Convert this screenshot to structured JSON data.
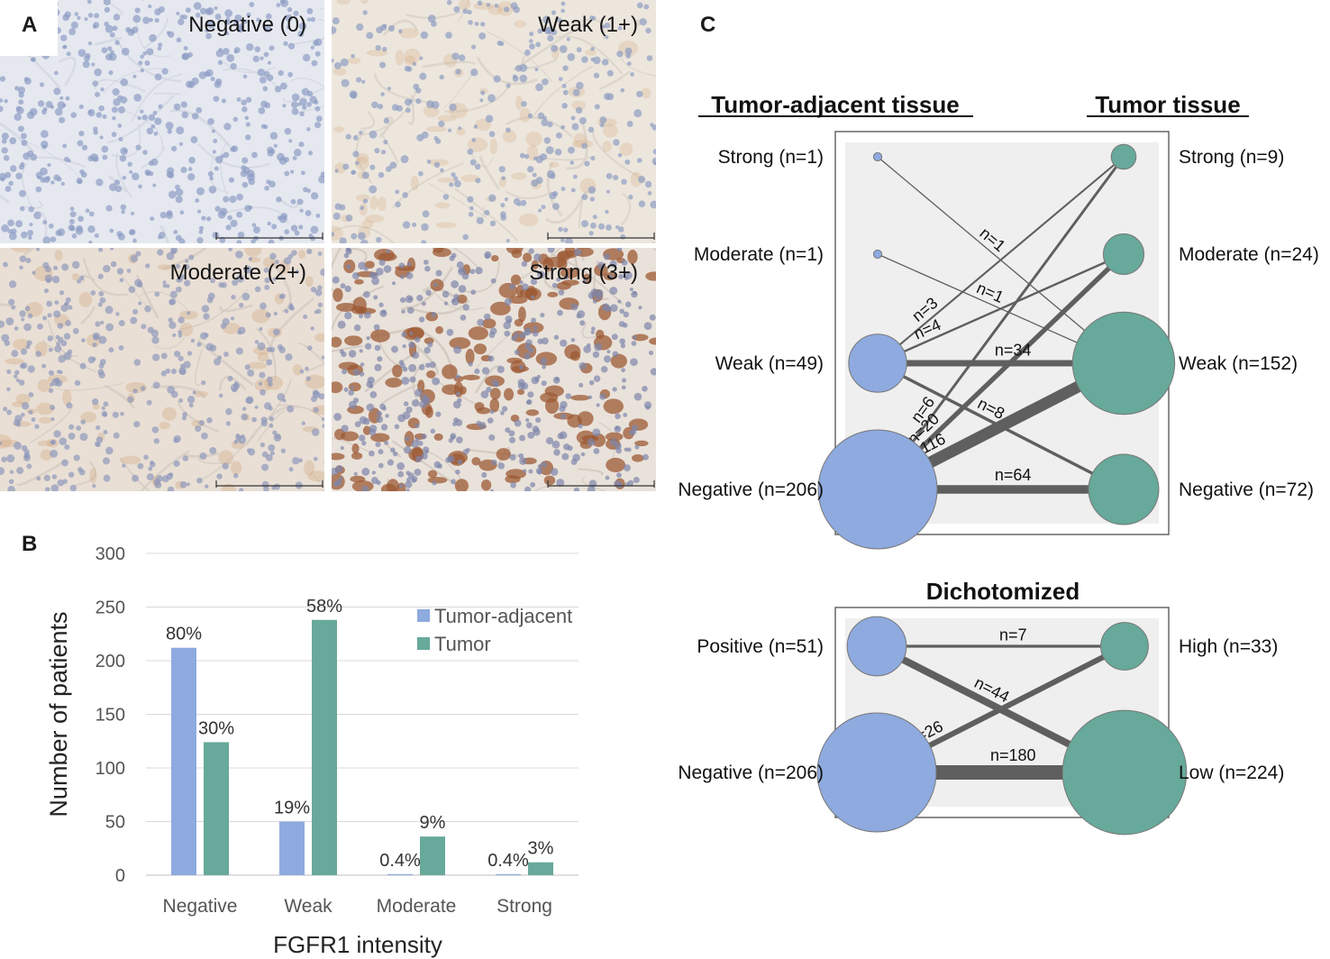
{
  "panels": {
    "a": {
      "letter": "A",
      "tiles": [
        {
          "label": "Negative (0)",
          "stain": "negative"
        },
        {
          "label": "Weak (1+)",
          "stain": "weak"
        },
        {
          "label": "Moderate (2+)",
          "stain": "moderate"
        },
        {
          "label": "Strong (3+)",
          "stain": "strong"
        }
      ]
    },
    "b": {
      "letter": "B"
    },
    "c": {
      "letter": "C"
    }
  },
  "colors": {
    "tumor_adjacent": "#8eaadf",
    "tumor": "#67a99a",
    "edge": "#5f5f5f",
    "box_fill": "#efefef",
    "gridline": "#d9d9d9"
  },
  "chart_data": [
    {
      "type": "bar",
      "categories": [
        "Negative",
        "Weak",
        "Moderate",
        "Strong"
      ],
      "series": [
        {
          "name": "Tumor-adjacent",
          "values": [
            212,
            50,
            1,
            1
          ],
          "labels": [
            "80%",
            "19%",
            "0.4%",
            "0.4%"
          ]
        },
        {
          "name": "Tumor",
          "values": [
            124,
            238,
            36,
            12
          ],
          "labels": [
            "30%",
            "58%",
            "9%",
            "3%"
          ]
        }
      ],
      "xlabel": "FGFR1 intensity",
      "ylabel": "Number of patients",
      "ylim": [
        0,
        300
      ],
      "yticks": [
        0,
        50,
        100,
        150,
        200,
        250,
        300
      ],
      "grid": true,
      "legend": "top-right"
    },
    {
      "type": "network",
      "left_title": "Tumor-adjacent tissue",
      "right_title": "Tumor tissue",
      "left_nodes": [
        {
          "label": "Strong (n=1)",
          "n": 1
        },
        {
          "label": "Moderate (n=1)",
          "n": 1
        },
        {
          "label": "Weak (n=49)",
          "n": 49
        },
        {
          "label": "Negative (n=206)",
          "n": 206
        }
      ],
      "right_nodes": [
        {
          "label": "Strong (n=9)",
          "n": 9
        },
        {
          "label": "Moderate (n=24)",
          "n": 24
        },
        {
          "label": "Weak (n=152)",
          "n": 152
        },
        {
          "label": "Negative (n=72)",
          "n": 72
        }
      ],
      "edges": [
        {
          "from": 0,
          "to": 2,
          "n": 1,
          "label": "n=1"
        },
        {
          "from": 1,
          "to": 2,
          "n": 1,
          "label": "n=1"
        },
        {
          "from": 2,
          "to": 0,
          "n": 3,
          "label": "n=3"
        },
        {
          "from": 2,
          "to": 1,
          "n": 4,
          "label": "n=4"
        },
        {
          "from": 2,
          "to": 2,
          "n": 34,
          "label": "n=34"
        },
        {
          "from": 2,
          "to": 3,
          "n": 8,
          "label": "n=8"
        },
        {
          "from": 3,
          "to": 0,
          "n": 6,
          "label": "n=6"
        },
        {
          "from": 3,
          "to": 1,
          "n": 20,
          "label": "n=20"
        },
        {
          "from": 3,
          "to": 2,
          "n": 116,
          "label": "n=116"
        },
        {
          "from": 3,
          "to": 3,
          "n": 64,
          "label": "n=64"
        }
      ]
    },
    {
      "type": "network",
      "title": "Dichotomized",
      "left_nodes": [
        {
          "label": "Positive (n=51)",
          "n": 51
        },
        {
          "label": "Negative (n=206)",
          "n": 206
        }
      ],
      "right_nodes": [
        {
          "label": "High (n=33)",
          "n": 33
        },
        {
          "label": "Low (n=224)",
          "n": 224
        }
      ],
      "edges": [
        {
          "from": 0,
          "to": 0,
          "n": 7,
          "label": "n=7"
        },
        {
          "from": 0,
          "to": 1,
          "n": 44,
          "label": "n=44"
        },
        {
          "from": 1,
          "to": 0,
          "n": 26,
          "label": "n=26"
        },
        {
          "from": 1,
          "to": 1,
          "n": 180,
          "label": "n=180"
        }
      ]
    }
  ]
}
